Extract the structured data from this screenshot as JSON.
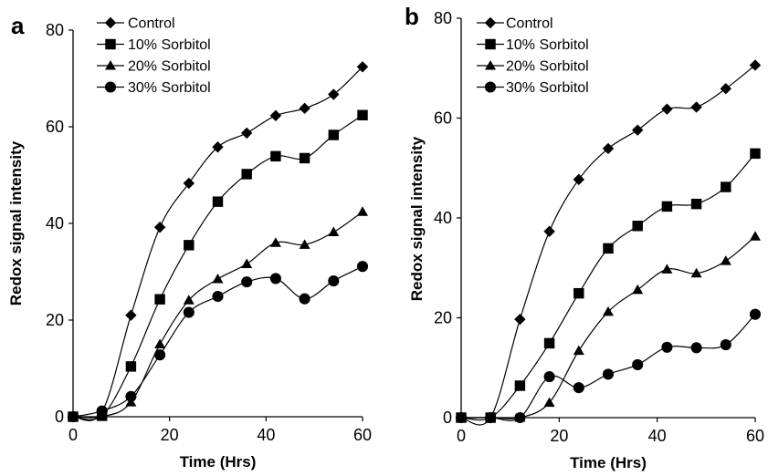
{
  "chart_data": [
    {
      "type": "line",
      "panel": "a",
      "xlabel": "Time (Hrs)",
      "ylabel": "Redox signal intensity",
      "xlim": [
        0,
        60
      ],
      "ylim": [
        0,
        80
      ],
      "xticks": [
        0,
        20,
        40,
        60
      ],
      "yticks": [
        0,
        20,
        40,
        60,
        80
      ],
      "legend_position": "top-left",
      "x": [
        0,
        6,
        12,
        18,
        24,
        30,
        36,
        42,
        48,
        54,
        60
      ],
      "series": [
        {
          "name": "Control",
          "marker": "diamond",
          "values": [
            0,
            1,
            21,
            39.2,
            48.3,
            55.8,
            58.7,
            62.3,
            63.8,
            66.7,
            72.4
          ]
        },
        {
          "name": "10% Sorbitol",
          "marker": "square",
          "values": [
            0,
            0.2,
            10.4,
            24.3,
            35.5,
            44.5,
            50.2,
            53.9,
            53.5,
            58.3,
            62.4
          ]
        },
        {
          "name": "20% Sorbitol",
          "marker": "triangle",
          "values": [
            0,
            0,
            3,
            15,
            24.1,
            28.5,
            31.6,
            36,
            35.6,
            38.2,
            42.4
          ]
        },
        {
          "name": "30% Sorbitol",
          "marker": "circle",
          "values": [
            0,
            1.2,
            4.2,
            12.8,
            21.6,
            24.9,
            27.9,
            28.6,
            24.4,
            28.1,
            31.1
          ]
        }
      ]
    },
    {
      "type": "line",
      "panel": "b",
      "xlabel": "Time (Hrs)",
      "ylabel": "Redox signal intensity",
      "xlim": [
        0,
        60
      ],
      "ylim": [
        0,
        80
      ],
      "xticks": [
        0,
        20,
        40,
        60
      ],
      "yticks": [
        0,
        20,
        40,
        60,
        80
      ],
      "legend_position": "top-left",
      "x": [
        0,
        6,
        12,
        18,
        24,
        30,
        36,
        42,
        48,
        54,
        60
      ],
      "series": [
        {
          "name": "Control",
          "marker": "diamond",
          "values": [
            0,
            0,
            19.7,
            37.3,
            47.7,
            53.9,
            57.6,
            61.8,
            62.2,
            65.9,
            70.6
          ]
        },
        {
          "name": "10% Sorbitol",
          "marker": "square",
          "values": [
            0,
            0,
            6.4,
            14.9,
            24.9,
            33.9,
            38.4,
            42.3,
            42.8,
            46.2,
            52.9
          ]
        },
        {
          "name": "20% Sorbitol",
          "marker": "triangle",
          "values": [
            0,
            0,
            0,
            3,
            13.4,
            21.2,
            25.6,
            29.7,
            28.9,
            31.4,
            36.3
          ]
        },
        {
          "name": "30% Sorbitol",
          "marker": "circle",
          "values": [
            0,
            0,
            0,
            8.2,
            6,
            8.7,
            10.6,
            14.1,
            14,
            14.6,
            20.7
          ]
        }
      ]
    }
  ]
}
